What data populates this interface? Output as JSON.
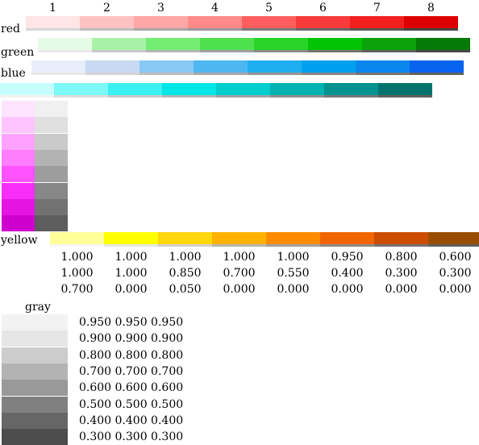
{
  "column_numbers": [
    "1",
    "2",
    "3",
    "4",
    "5",
    "6",
    "7",
    "8"
  ],
  "rows": [
    {
      "label": "red",
      "colors": [
        "#ffe5e5",
        "#ffc2c2",
        "#ffa6a6",
        "#ff8a8a",
        "#ff5e5e",
        "#f73b3b",
        "#f21f1f",
        "#dd0000"
      ],
      "bar_colors": [
        "#d7d7d7",
        "#bcbcbc",
        "#a8a8a8",
        "#989898",
        "#7a7a7a",
        "#666666",
        "#555555",
        "#444444"
      ]
    },
    {
      "label": "green",
      "colors": [
        "#e6fbe6",
        "#a7f2a7",
        "#73ec73",
        "#4fe04f",
        "#28d428",
        "#03c403",
        "#0aa30a",
        "#067a06"
      ],
      "bar_colors": [
        "#e9e9e9",
        "#c9c9c9",
        "#b5b5b5",
        "#a0a0a0",
        "#8a8a8a",
        "#737373",
        "#606060",
        "#474747"
      ]
    },
    {
      "label": "blue",
      "colors": [
        "#e8eefb",
        "#cad9f3",
        "#88c8f4",
        "#4fb7f0",
        "#1faeef",
        "#00a0ef",
        "#0a86ef",
        "#0863ee"
      ],
      "bar_colors": [
        "#e8e8e8",
        "#d4d4d4",
        "#bdbdbd",
        "#a8a8a8",
        "#969696",
        "#868686",
        "#747474",
        "#626262"
      ]
    },
    {
      "label": "",
      "colors": [
        "#c6fefe",
        "#7df7f7",
        "#3af0f0",
        "#00e5e5",
        "#00cdcd",
        "#00b2b2",
        "#00928f",
        "#00726e"
      ],
      "bar_colors": [
        "#f2f2f2",
        "#dcdcdc",
        "#c9c9c9",
        "#b7b7b7",
        "#a3a3a3",
        "#8f8f8f",
        "#787878",
        "#616161"
      ]
    }
  ],
  "magenta_column": {
    "colors": [
      "#ffe3ff",
      "#ffc3ff",
      "#ffa1ff",
      "#ff7dff",
      "#ff52ff",
      "#f62ef6",
      "#e514e5",
      "#cf00cf"
    ],
    "grays": [
      "#f0f0f0",
      "#e0e0e0",
      "#cacaca",
      "#b3b3b3",
      "#9d9d9d",
      "#878787",
      "#727272",
      "#5d5d5d"
    ]
  },
  "yellow_row": {
    "label": "yellow",
    "colors": [
      "#ffff99",
      "#ffff00",
      "#ffd70d",
      "#ffb300",
      "#ff8c00",
      "#f26600",
      "#cc4d00",
      "#994d00"
    ],
    "bar_colors": [
      "#f7f7f7",
      "#e6e6e6",
      "#d0d0d0",
      "#b7b7b7",
      "#a3a3a3",
      "#8b8b8b",
      "#747474",
      "#606060"
    ],
    "values": [
      [
        "1.000",
        "1.000",
        "1.000",
        "1.000",
        "1.000",
        "0.950",
        "0.800",
        "0.600"
      ],
      [
        "1.000",
        "1.000",
        "0.850",
        "0.700",
        "0.550",
        "0.400",
        "0.300",
        "0.300"
      ],
      [
        "0.700",
        "0.000",
        "0.050",
        "0.000",
        "0.000",
        "0.000",
        "0.000",
        "0.000"
      ]
    ]
  },
  "gray_block": {
    "label": "gray",
    "colors": [
      "#f2f2f2",
      "#e6e6e6",
      "#cccccc",
      "#b3b3b3",
      "#999999",
      "#808080",
      "#666666",
      "#4d4d4d"
    ],
    "values": [
      "0.950 0.950 0.950",
      "0.900 0.900 0.900",
      "0.800 0.800 0.800",
      "0.700 0.700 0.700",
      "0.600 0.600 0.600",
      "0.500 0.500 0.500",
      "0.400 0.400 0.400",
      "0.300 0.300 0.300"
    ]
  }
}
